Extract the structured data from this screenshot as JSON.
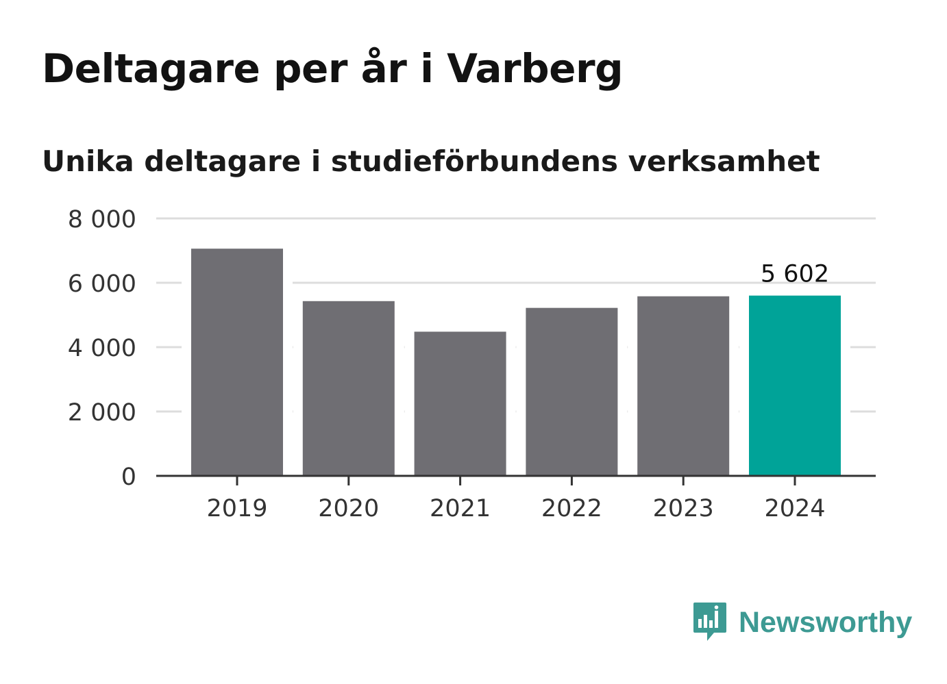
{
  "header": {
    "title": "Deltagare per år i Varberg",
    "subtitle": "Unika deltagare i studieförbundens verksamhet"
  },
  "brand": {
    "name": "Newsworthy",
    "icon": "newsworthy-logo-icon",
    "color": "#3d9a93"
  },
  "chart_data": {
    "type": "bar",
    "categories": [
      "2019",
      "2020",
      "2021",
      "2022",
      "2023",
      "2024"
    ],
    "values": [
      7060,
      5430,
      4480,
      5220,
      5580,
      5602
    ],
    "ylim": [
      0,
      8000
    ],
    "yticks": [
      0,
      2000,
      4000,
      6000,
      8000
    ],
    "ytick_labels": [
      "0",
      "2 000",
      "4 000",
      "6 000",
      "8 000"
    ],
    "grid": true,
    "legend": "none",
    "highlight_index": 5,
    "highlight_label": "5 602",
    "colors": {
      "bar": "#6f6e73",
      "highlight": "#00a398",
      "grid": "#dddddd",
      "axis": "#333333"
    }
  }
}
